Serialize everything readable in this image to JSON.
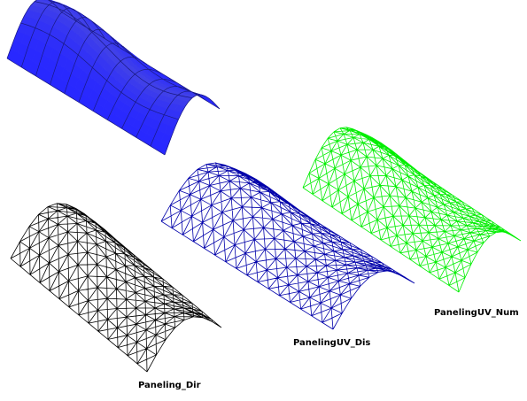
{
  "labels": {
    "paneling_dir": "Paneling_Dir",
    "paneling_uv_dis": "PanelingUV_Dis",
    "paneling_uv_num": "PanelingUV_Num"
  },
  "colors": {
    "surface_fill": "#3333ff",
    "surface_highlight": "#9a9aff",
    "surface_edges": "#1a1a80",
    "mesh_dir": "#000000",
    "mesh_uv_dis": "#0000aa",
    "mesh_uv_num": "#00ee00",
    "background": "#ffffff"
  }
}
